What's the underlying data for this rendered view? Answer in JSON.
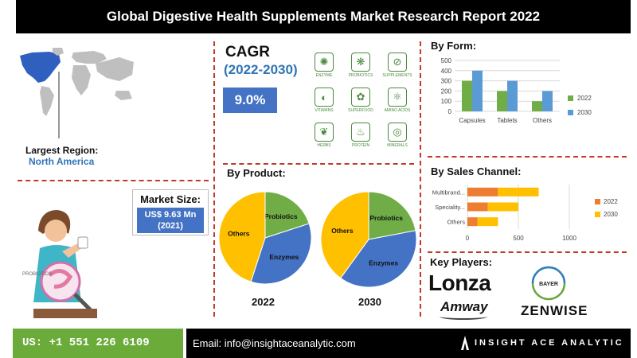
{
  "title": "Global Digestive Health Supplements Market Research Report 2022",
  "largest_region": {
    "label": "Largest Region:",
    "value": "North America"
  },
  "market_size": {
    "label": "Market Size:",
    "value_line1": "US$ 9.63 Mn",
    "value_line2": "(2021)"
  },
  "illustration": {
    "label": "PROBIOTICS"
  },
  "cagr": {
    "title": "CAGR",
    "years": "(2022-2030)",
    "value": "9.0%"
  },
  "form_icons": [
    {
      "icon": "enzyme-icon",
      "label": "ENZYME",
      "glyph": "✺"
    },
    {
      "icon": "probiotics-icon",
      "label": "PROBIOTICS",
      "glyph": "❋"
    },
    {
      "icon": "supplements-icon",
      "label": "SUPPLEMENTS",
      "glyph": "⊘"
    },
    {
      "icon": "vitamins-icon",
      "label": "VITAMINS",
      "glyph": "◐"
    },
    {
      "icon": "superfood-icon",
      "label": "SUPERFOOD",
      "glyph": "✿"
    },
    {
      "icon": "amino-acids-icon",
      "label": "AMINO ACIDS",
      "glyph": "⚛"
    },
    {
      "icon": "herbs-icon",
      "label": "HERBS",
      "glyph": "❦"
    },
    {
      "icon": "protein-icon",
      "label": "PROTEIN",
      "glyph": "♨"
    },
    {
      "icon": "minerals-icon",
      "label": "MINERALS",
      "glyph": "◎"
    }
  ],
  "sections": {
    "by_form": "By Form:",
    "by_product": "By Product:",
    "by_sales_channel": "By Sales Channel:",
    "key_players": "Key Players:"
  },
  "key_players": {
    "lonza": "Lonza",
    "amway": "Amway",
    "bayer": "BAYER",
    "zenwise": "ZENWISE"
  },
  "footer": {
    "phone": "US: +1 551 226 6109",
    "email": "Email: info@insightaceanalytic.com",
    "brand": "INSIGHT ACE ANALYTIC"
  },
  "colors": {
    "series_2022": "#70ad47",
    "series_2030": "#5b9bd5",
    "pie_probiotics": "#70ad47",
    "pie_enzymes": "#4472c4",
    "pie_others": "#ffc000",
    "sales_2022": "#ed7d31",
    "sales_2030": "#ffc000"
  },
  "chart_data": [
    {
      "type": "bar",
      "title": "By Form:",
      "categories": [
        "Capsules",
        "Tablets",
        "Others"
      ],
      "series": [
        {
          "name": "2022",
          "values": [
            300,
            200,
            100
          ]
        },
        {
          "name": "2030",
          "values": [
            400,
            300,
            200
          ]
        }
      ],
      "ylim": [
        0,
        500
      ],
      "yticks": [
        0,
        100,
        200,
        300,
        400,
        500
      ],
      "grid": true,
      "legend": "right"
    },
    {
      "type": "pie",
      "title": "By Product:",
      "label": "2022",
      "slices": [
        {
          "name": "Probiotics",
          "value": 20
        },
        {
          "name": "Enzymes",
          "value": 35
        },
        {
          "name": "Others",
          "value": 45
        }
      ]
    },
    {
      "type": "pie",
      "label": "2030",
      "slices": [
        {
          "name": "Probiotics",
          "value": 22
        },
        {
          "name": "Enzymes",
          "value": 38
        },
        {
          "name": "Others",
          "value": 40
        }
      ]
    },
    {
      "type": "bar",
      "orientation": "horizontal",
      "stacked": true,
      "title": "By Sales Channel:",
      "categories": [
        "Multibrand...",
        "Speciality...",
        "Others"
      ],
      "series": [
        {
          "name": "2022",
          "values": [
            300,
            200,
            100
          ]
        },
        {
          "name": "2030",
          "values": [
            400,
            300,
            200
          ]
        }
      ],
      "xlim": [
        0,
        1000
      ],
      "xticks": [
        0,
        500,
        1000
      ],
      "grid": true,
      "legend": "right"
    }
  ]
}
